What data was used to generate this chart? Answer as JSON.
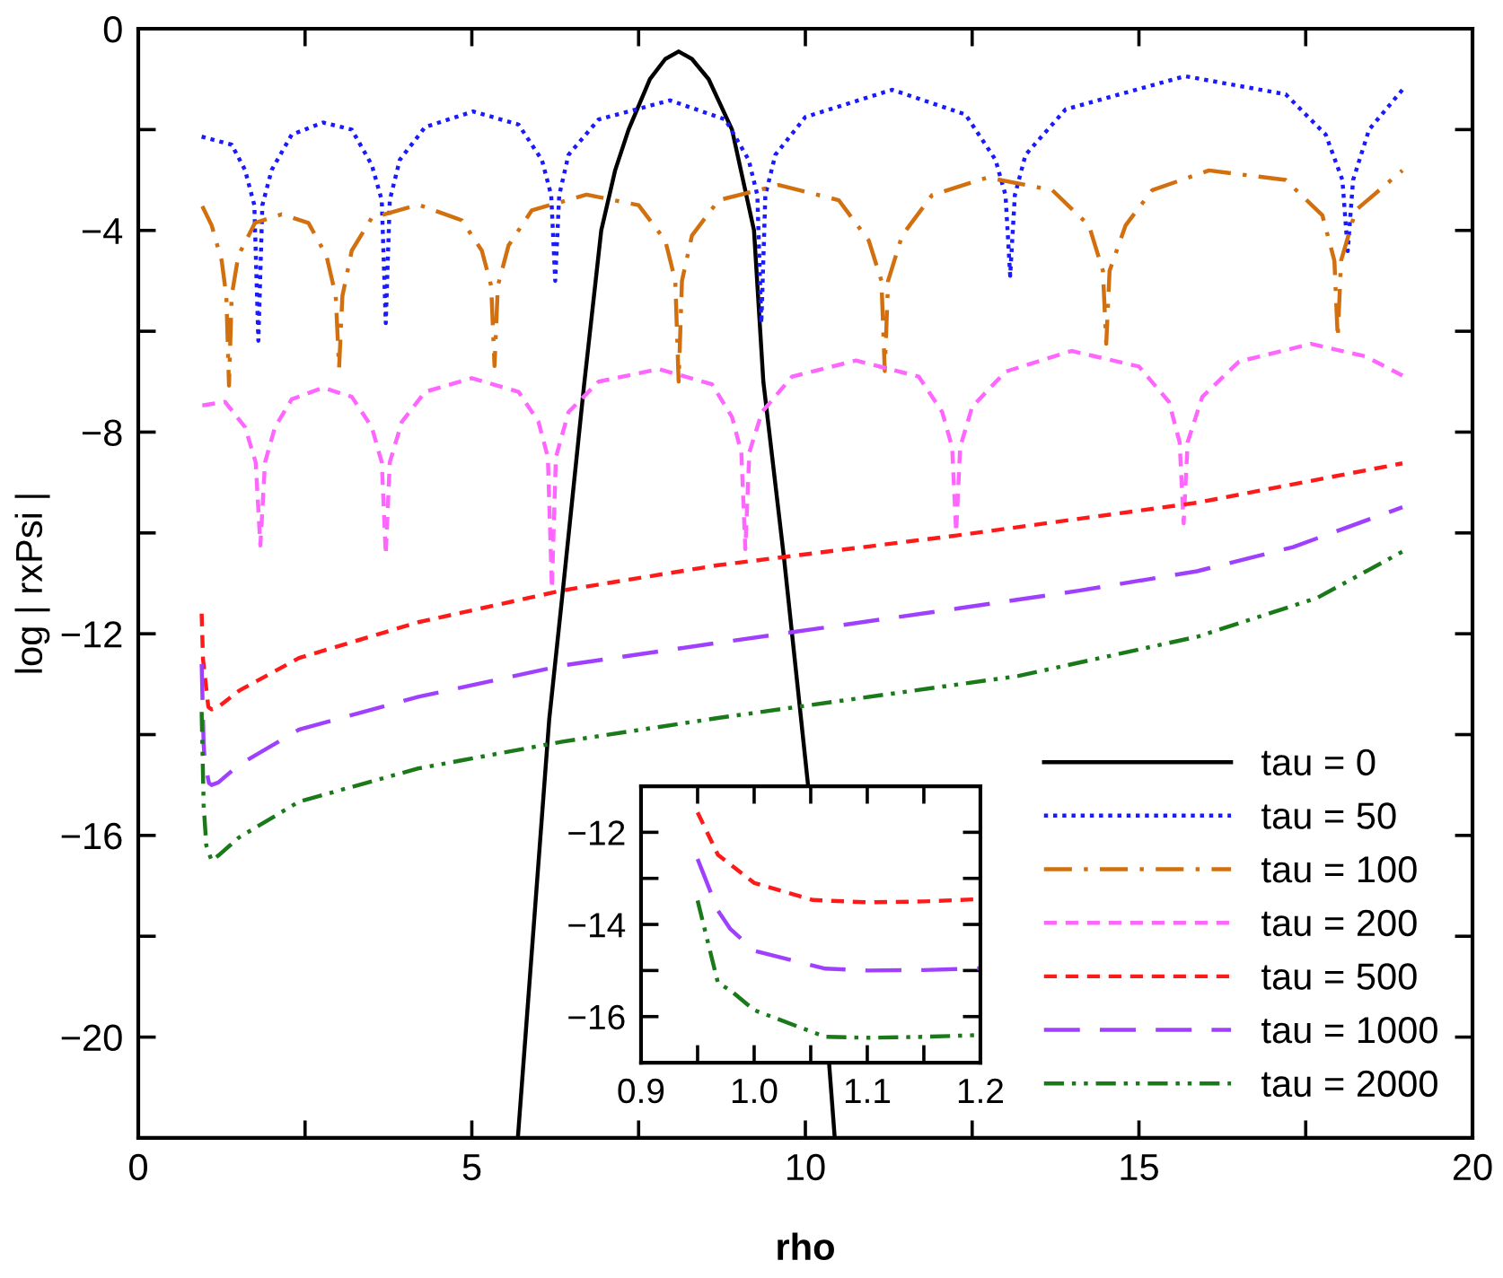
{
  "chart_data": [
    {
      "type": "line",
      "xlabel": "rho",
      "ylabel": "log | rxPsi |",
      "xlim": [
        0,
        20
      ],
      "ylim": [
        -22,
        0
      ],
      "xticks": [
        0,
        {
          "value": 2.5,
          "label": null
        },
        5,
        {
          "value": 7.5,
          "label": null
        },
        10,
        {
          "value": 12.5,
          "label": null
        },
        15,
        {
          "value": 17.5,
          "label": null
        },
        20
      ],
      "yticks": [
        {
          "value": -22,
          "label": null
        },
        {
          "value": -20,
          "label": "−20"
        },
        {
          "value": -18,
          "label": null
        },
        {
          "value": -16,
          "label": "−16"
        },
        {
          "value": -14,
          "label": null
        },
        {
          "value": -12,
          "label": "−12"
        },
        {
          "value": -10,
          "label": null
        },
        {
          "value": -8,
          "label": "−8"
        },
        {
          "value": -6,
          "label": null
        },
        {
          "value": -4,
          "label": "−4"
        },
        {
          "value": -2,
          "label": null
        },
        0
      ],
      "legend": "bottom right",
      "series": [
        {
          "name": "tau = 0",
          "color": "#000000",
          "line_style": "solid",
          "x": [
            5.69,
            6.16,
            6.36,
            6.68,
            6.94,
            7.15,
            7.35,
            7.67,
            7.9,
            8.1,
            8.3,
            8.55,
            8.9,
            9.23,
            9.37,
            9.68,
            10.04,
            10.44
          ],
          "values": [
            -22,
            -13.7,
            -11.2,
            -7.1,
            -4.0,
            -2.8,
            -2.0,
            -1.0,
            -0.6,
            -0.45,
            -0.6,
            -1.0,
            -2.0,
            -4.0,
            -7.0,
            -10.5,
            -15.0,
            -22
          ]
        },
        {
          "name": "tau = 50",
          "color": "#1a1aff",
          "line_style": "dotted",
          "x": [
            0.95,
            1.4,
            1.6,
            1.74,
            1.8,
            1.86,
            2.0,
            2.3,
            2.77,
            3.2,
            3.5,
            3.65,
            3.71,
            3.77,
            3.92,
            4.3,
            5.02,
            5.7,
            6.05,
            6.19,
            6.25,
            6.31,
            6.45,
            6.9,
            7.97,
            8.8,
            9.15,
            9.28,
            9.34,
            9.4,
            9.55,
            10.0,
            11.3,
            12.4,
            12.85,
            13.0,
            13.07,
            13.14,
            13.3,
            13.9,
            15.69,
            17.2,
            17.8,
            18.05,
            18.13,
            18.21,
            18.45,
            18.95
          ],
          "values": [
            -2.14,
            -2.3,
            -2.8,
            -3.5,
            -6.19,
            -3.5,
            -2.8,
            -2.1,
            -1.86,
            -2.0,
            -2.7,
            -3.4,
            -5.84,
            -3.4,
            -2.6,
            -1.95,
            -1.64,
            -1.9,
            -2.6,
            -3.3,
            -5.0,
            -3.3,
            -2.5,
            -1.8,
            -1.42,
            -1.8,
            -2.6,
            -3.3,
            -5.84,
            -3.3,
            -2.5,
            -1.75,
            -1.21,
            -1.7,
            -2.6,
            -3.3,
            -4.9,
            -3.3,
            -2.5,
            -1.6,
            -0.94,
            -1.3,
            -2.1,
            -3.0,
            -4.41,
            -3.0,
            -2.0,
            -1.21
          ]
        },
        {
          "name": "tau = 100",
          "color": "#d2700f",
          "line_style": "dashdot",
          "x": [
            0.96,
            1.1,
            1.25,
            1.32,
            1.36,
            1.4,
            1.5,
            1.75,
            2.15,
            2.55,
            2.82,
            2.96,
            3.01,
            3.06,
            3.2,
            3.5,
            4.2,
            4.85,
            5.15,
            5.29,
            5.34,
            5.39,
            5.55,
            5.9,
            6.72,
            7.5,
            7.9,
            8.05,
            8.1,
            8.15,
            8.3,
            8.7,
            9.6,
            10.5,
            10.95,
            11.14,
            11.19,
            11.24,
            11.45,
            11.9,
            12.73,
            13.7,
            14.25,
            14.46,
            14.51,
            14.56,
            14.8,
            15.2,
            16.05,
            17.2,
            17.75,
            17.93,
            17.98,
            18.03,
            18.25,
            18.95
          ],
          "values": [
            -3.52,
            -3.9,
            -4.6,
            -5.3,
            -7.08,
            -5.3,
            -4.5,
            -3.85,
            -3.68,
            -3.85,
            -4.5,
            -5.3,
            -6.73,
            -5.3,
            -4.4,
            -3.75,
            -3.49,
            -3.8,
            -4.4,
            -5.1,
            -6.69,
            -5.1,
            -4.3,
            -3.6,
            -3.29,
            -3.5,
            -4.2,
            -5.0,
            -7.0,
            -5.0,
            -4.1,
            -3.4,
            -3.1,
            -3.4,
            -4.2,
            -5.0,
            -6.79,
            -5.0,
            -4.1,
            -3.3,
            -2.95,
            -3.2,
            -3.9,
            -4.8,
            -6.25,
            -4.8,
            -3.9,
            -3.2,
            -2.81,
            -3.0,
            -3.7,
            -4.6,
            -6.13,
            -4.6,
            -3.6,
            -2.81
          ]
        },
        {
          "name": "tau = 200",
          "color": "#ff66ff",
          "line_style": "dashed",
          "x": [
            0.96,
            1.3,
            1.6,
            1.76,
            1.83,
            1.9,
            2.05,
            2.3,
            2.77,
            3.2,
            3.5,
            3.65,
            3.71,
            3.77,
            3.95,
            4.3,
            5.0,
            5.7,
            6.0,
            6.14,
            6.2,
            6.26,
            6.45,
            6.9,
            7.8,
            8.6,
            8.9,
            9.04,
            9.1,
            9.16,
            9.35,
            9.8,
            10.76,
            11.7,
            12.05,
            12.2,
            12.26,
            12.32,
            12.5,
            13.0,
            13.99,
            15.0,
            15.45,
            15.61,
            15.67,
            15.73,
            15.95,
            16.5,
            17.58,
            18.4,
            18.95
          ],
          "values": [
            -7.47,
            -7.4,
            -7.9,
            -8.6,
            -10.25,
            -8.6,
            -7.9,
            -7.35,
            -7.12,
            -7.3,
            -7.9,
            -8.6,
            -10.43,
            -8.6,
            -7.8,
            -7.2,
            -6.93,
            -7.2,
            -7.8,
            -8.5,
            -11.1,
            -8.5,
            -7.6,
            -7.0,
            -6.75,
            -7.05,
            -7.7,
            -8.4,
            -10.32,
            -8.4,
            -7.6,
            -6.9,
            -6.58,
            -6.9,
            -7.6,
            -8.3,
            -9.99,
            -8.3,
            -7.5,
            -6.8,
            -6.39,
            -6.7,
            -7.4,
            -8.2,
            -9.81,
            -8.2,
            -7.3,
            -6.6,
            -6.25,
            -6.5,
            -6.88
          ]
        },
        {
          "name": "tau = 500",
          "color": "#ff1a1a",
          "line_style": "dashed",
          "x": [
            0.95,
            0.97,
            1.05,
            1.1,
            1.2,
            1.51,
            2.41,
            4.2,
            6.36,
            8.69,
            12.27,
            15.87,
            18.95
          ],
          "values": [
            -11.6,
            -12.5,
            -13.45,
            -13.5,
            -13.45,
            -13.13,
            -12.48,
            -11.77,
            -11.14,
            -10.64,
            -10.05,
            -9.4,
            -8.62
          ]
        },
        {
          "name": "tau = 1000",
          "color": "#a040ff",
          "line_style": "longdash",
          "x": [
            0.95,
            0.98,
            1.0,
            1.06,
            1.1,
            1.2,
            1.51,
            2.41,
            4.2,
            6.36,
            8.69,
            12.28,
            14.08,
            15.87,
            17.31,
            18.95
          ],
          "values": [
            -12.6,
            -14.2,
            -14.57,
            -14.96,
            -15.0,
            -14.95,
            -14.6,
            -13.9,
            -13.25,
            -12.63,
            -12.18,
            -11.5,
            -11.15,
            -10.76,
            -10.28,
            -9.49
          ]
        },
        {
          "name": "tau = 2000",
          "color": "#1a7a1a",
          "line_style": "dashdotdot",
          "x": [
            0.95,
            0.98,
            1.02,
            1.1,
            1.2,
            1.51,
            2.41,
            4.2,
            6.36,
            8.69,
            13.18,
            15.87,
            17.67,
            18.95
          ],
          "values": [
            -13.55,
            -15.4,
            -16.2,
            -16.5,
            -16.4,
            -16.04,
            -15.33,
            -14.67,
            -14.14,
            -13.67,
            -12.84,
            -12.06,
            -11.29,
            -10.37
          ]
        }
      ]
    },
    {
      "type": "line",
      "xlim": [
        0.9,
        1.2
      ],
      "ylim": [
        -17,
        -11
      ],
      "xticks": [
        0.9,
        {
          "value": 0.95,
          "label": null
        },
        {
          "value": 1.0,
          "label": "1.0"
        },
        {
          "value": 1.05,
          "label": null
        },
        1.1,
        {
          "value": 1.15,
          "label": null
        },
        1.2
      ],
      "yticks": [
        {
          "value": -16,
          "label": "−16"
        },
        {
          "value": -15,
          "label": null
        },
        {
          "value": -14,
          "label": "−14"
        },
        {
          "value": -13,
          "label": null
        },
        {
          "value": -12,
          "label": "−12"
        }
      ],
      "series": [
        {
          "color": "#ff1a1a",
          "line_style": "dashed",
          "x": [
            0.95,
            0.968,
            1.0,
            1.052,
            1.1,
            1.15,
            1.2
          ],
          "values": [
            -11.57,
            -12.49,
            -13.1,
            -13.47,
            -13.52,
            -13.5,
            -13.45
          ]
        },
        {
          "color": "#a040ff",
          "line_style": "longdash",
          "x": [
            0.95,
            0.968,
            0.979,
            1.0,
            1.063,
            1.1,
            1.15,
            1.2
          ],
          "values": [
            -12.58,
            -13.7,
            -14.1,
            -14.57,
            -14.96,
            -15.0,
            -14.99,
            -14.95
          ]
        },
        {
          "color": "#1a7a1a",
          "line_style": "dashdotdot",
          "x": [
            0.95,
            0.968,
            0.979,
            1.0,
            1.063,
            1.1,
            1.15,
            1.2
          ],
          "values": [
            -13.48,
            -15.27,
            -15.43,
            -15.86,
            -16.44,
            -16.46,
            -16.44,
            -16.4
          ]
        }
      ]
    }
  ]
}
